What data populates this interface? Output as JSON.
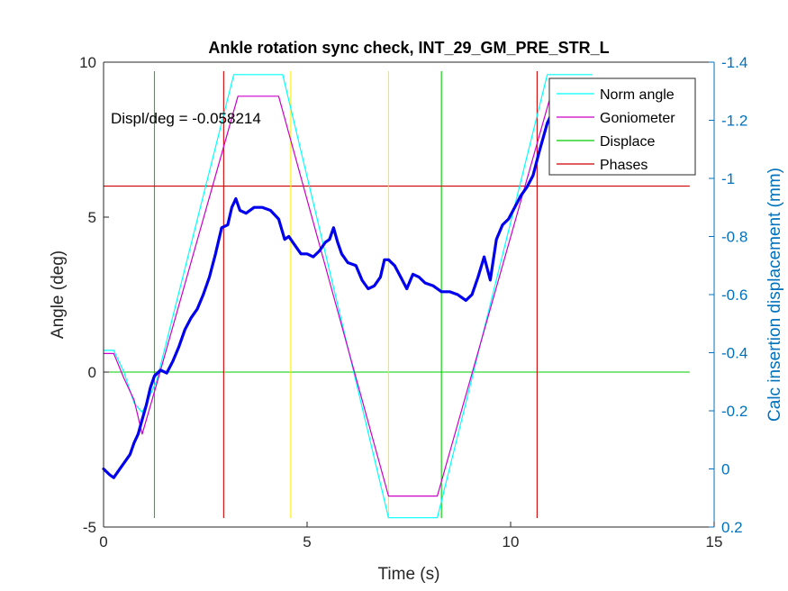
{
  "chart_data": {
    "type": "line",
    "title": "Ankle rotation sync check, INT_29_GM_PRE_STR_L",
    "xlabel": "Time (s)",
    "ylabel": "Angle (deg)",
    "ylabel_right": "Calc insertion displacement (mm)",
    "xlim": [
      0,
      15
    ],
    "ylim": [
      -5,
      10
    ],
    "ylim_right": [
      0.2,
      -1.4
    ],
    "right_axis_reversed": true,
    "xticks": [
      0,
      5,
      10,
      15
    ],
    "yticks": [
      -5,
      0,
      5,
      10
    ],
    "yticks_right": [
      0.2,
      0,
      -0.2,
      -0.4,
      -0.6,
      -0.8,
      -1,
      -1.2,
      -1.4
    ],
    "xtick_labels": [
      "0",
      "5",
      "10",
      "15"
    ],
    "ytick_labels": [
      "-5",
      "0",
      "5",
      "10"
    ],
    "ytick_labels_right": [
      "0.2",
      "0",
      "-0.2",
      "-0.4",
      "-0.6",
      "-0.8",
      "-1",
      "-1.2",
      "-1.4"
    ],
    "grid": false,
    "legend_position": "top-right",
    "annotation": "Displ/deg = -0.058214",
    "colors": {
      "norm_angle": "#00ffff",
      "goniometer": "#cc00cc",
      "displace": "#00cc00",
      "phases": "#cc0000",
      "yellow": "#ffee00",
      "displacement_right": "#0000ee",
      "right_axis": "#0072bd"
    },
    "series": [
      {
        "name": "Norm angle",
        "axis": "left",
        "x": [
          0,
          0.25,
          0.5,
          0.75,
          0.95,
          1.3,
          3.2,
          4.4,
          7.0,
          8.2,
          10.9,
          12.0
        ],
        "y": [
          0.7,
          0.7,
          0.0,
          -1.0,
          -1.3,
          -0.3,
          9.6,
          9.6,
          -4.7,
          -4.7,
          9.6,
          9.6
        ]
      },
      {
        "name": "Goniometer",
        "axis": "left",
        "x": [
          0,
          0.25,
          0.5,
          0.75,
          0.95,
          1.3,
          3.3,
          4.3,
          7.0,
          8.2,
          11.0
        ],
        "y": [
          0.6,
          0.6,
          -0.2,
          -0.9,
          -2.0,
          -0.4,
          8.9,
          8.9,
          -4.0,
          -4.0,
          9.0
        ]
      },
      {
        "name": "Displace",
        "axis": "left",
        "horizontal": [
          0
        ],
        "vertical": [
          1.25,
          8.3
        ]
      },
      {
        "name": "Phases",
        "axis": "left",
        "horizontal": [
          6
        ],
        "vertical": [
          2.95,
          10.65
        ]
      },
      {
        "name": "",
        "axis": "left",
        "vertical": [
          4.6,
          7.0
        ]
      },
      {
        "name": "",
        "axis": "right",
        "x": [
          0,
          0.15,
          0.25,
          0.35,
          0.45,
          0.55,
          0.65,
          0.75,
          0.85,
          0.95,
          1.05,
          1.15,
          1.25,
          1.4,
          1.55,
          1.7,
          1.85,
          2.0,
          2.15,
          2.3,
          2.45,
          2.6,
          2.75,
          2.9,
          3.05,
          3.15,
          3.25,
          3.35,
          3.5,
          3.7,
          3.9,
          4.1,
          4.3,
          4.45,
          4.55,
          4.7,
          4.85,
          5.0,
          5.15,
          5.3,
          5.45,
          5.55,
          5.65,
          5.75,
          5.85,
          6.0,
          6.2,
          6.35,
          6.5,
          6.65,
          6.8,
          6.9,
          7.0,
          7.15,
          7.3,
          7.45,
          7.6,
          7.75,
          7.9,
          8.1,
          8.3,
          8.5,
          8.7,
          8.9,
          9.05,
          9.2,
          9.35,
          9.5,
          9.65,
          9.8,
          9.95,
          10.1,
          10.25,
          10.4,
          10.55,
          10.7,
          10.9,
          11.0
        ],
        "y": [
          0.0,
          0.02,
          0.03,
          0.01,
          -0.01,
          -0.03,
          -0.05,
          -0.09,
          -0.12,
          -0.17,
          -0.22,
          -0.28,
          -0.32,
          -0.34,
          -0.33,
          -0.37,
          -0.42,
          -0.48,
          -0.52,
          -0.55,
          -0.6,
          -0.66,
          -0.74,
          -0.83,
          -0.84,
          -0.9,
          -0.93,
          -0.89,
          -0.88,
          -0.9,
          -0.9,
          -0.89,
          -0.86,
          -0.79,
          -0.8,
          -0.77,
          -0.74,
          -0.74,
          -0.73,
          -0.75,
          -0.78,
          -0.79,
          -0.83,
          -0.78,
          -0.74,
          -0.71,
          -0.7,
          -0.65,
          -0.62,
          -0.63,
          -0.66,
          -0.72,
          -0.72,
          -0.7,
          -0.66,
          -0.62,
          -0.67,
          -0.66,
          -0.64,
          -0.63,
          -0.61,
          -0.61,
          -0.6,
          -0.58,
          -0.6,
          -0.66,
          -0.73,
          -0.65,
          -0.79,
          -0.84,
          -0.86,
          -0.9,
          -0.94,
          -0.97,
          -1.01,
          -1.09,
          -1.19,
          -1.22
        ]
      }
    ]
  }
}
